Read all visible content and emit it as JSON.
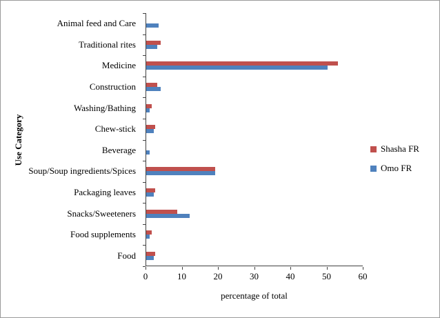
{
  "chart_data": {
    "type": "bar",
    "orientation": "horizontal",
    "title": "",
    "xlabel": "percentage of total",
    "ylabel": "Use Category",
    "xlim": [
      0,
      60
    ],
    "xticks": [
      0,
      10,
      20,
      30,
      40,
      50,
      60
    ],
    "grid": false,
    "legend_position": "right",
    "categories": [
      "Animal feed and Care",
      "Traditional rites",
      "Medicine",
      "Construction",
      "Washing/Bathing",
      "Chew-stick",
      "Beverage",
      "Soup/Soup ingredients/Spices",
      "Packaging leaves",
      "Snacks/Sweeteners",
      "Food supplements",
      "Food"
    ],
    "series": [
      {
        "name": "Shasha FR",
        "color": "#C0504D",
        "values": [
          0,
          4,
          53,
          3,
          1.5,
          2.5,
          0,
          19,
          2.5,
          8.5,
          1.5,
          2.5
        ]
      },
      {
        "name": "Omo FR",
        "color": "#4F81BD",
        "values": [
          3.5,
          3,
          50,
          4,
          1,
          2,
          1,
          19,
          2,
          12,
          1,
          2
        ]
      }
    ]
  }
}
